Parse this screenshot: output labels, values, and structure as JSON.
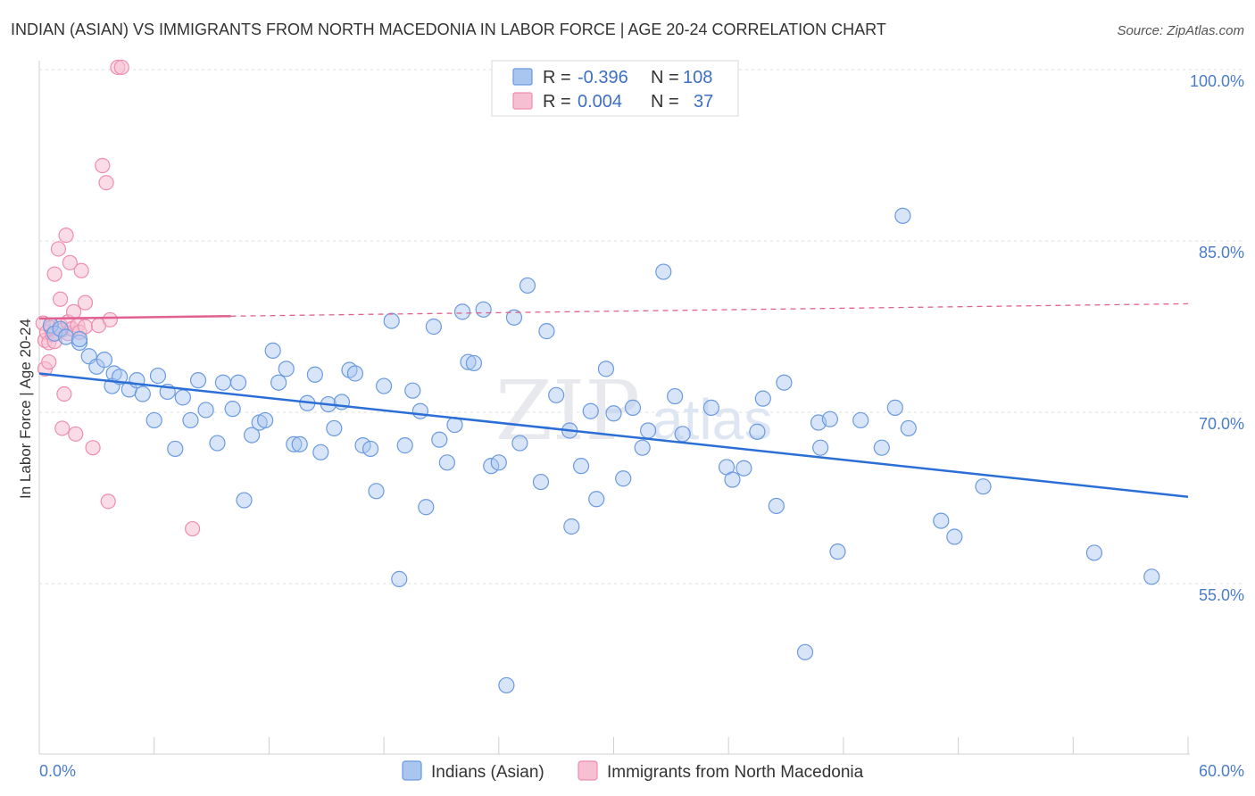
{
  "title": "INDIAN (ASIAN) VS IMMIGRANTS FROM NORTH MACEDONIA IN LABOR FORCE | AGE 20-24 CORRELATION CHART",
  "source": "Source: ZipAtlas.com",
  "watermark": {
    "zip": "ZIP",
    "atlas": "atlas"
  },
  "colors": {
    "blue": "#6a9ae0",
    "blue_fill": "#a9c6ef",
    "blue_line": "#2b6fd6",
    "pink": "#ee8db0",
    "pink_fill": "#f6bfd2",
    "pink_line": "#e0608f",
    "tick_text": "#4a7cc9"
  },
  "legend": {
    "row1": {
      "r_label": "R =",
      "r_value": "-0.396",
      "n_label": "N =",
      "n_value": "108"
    },
    "row2": {
      "r_label": "R =",
      "r_value": "0.004",
      "n_label": "N =",
      "n_value": "37"
    }
  },
  "bottom_legend": {
    "blue_label": "Indians (Asian)",
    "pink_label": "Immigrants from North Macedonia"
  },
  "chart_data": {
    "type": "scatter",
    "title": "INDIAN (ASIAN) VS IMMIGRANTS FROM NORTH MACEDONIA IN LABOR FORCE | AGE 20-24 CORRELATION CHART",
    "xlabel": "",
    "ylabel": "In Labor Force | Age 20-24",
    "xlim": [
      0,
      60
    ],
    "ylim": [
      40,
      102
    ],
    "x_tick_labels": [
      "0.0%",
      "60.0%"
    ],
    "y_ticks": [
      55,
      70,
      85,
      100
    ],
    "y_tick_labels": [
      "55.0%",
      "70.0%",
      "85.0%",
      "100.0%"
    ],
    "grid": "horizontal dashed",
    "legend_position": "top-center",
    "series": [
      {
        "name": "Indians (Asian)",
        "color": "#6a9ae0",
        "r": -0.396,
        "n": 108,
        "trend": {
          "x": [
            0,
            60
          ],
          "y": [
            73.4,
            62.6
          ],
          "style": "solid"
        },
        "points": [
          [
            0.6,
            77.6
          ],
          [
            0.8,
            76.9
          ],
          [
            1.1,
            77.3
          ],
          [
            1.4,
            76.6
          ],
          [
            2.1,
            76.1
          ],
          [
            2.1,
            76.4
          ],
          [
            2.6,
            74.9
          ],
          [
            3.0,
            74.0
          ],
          [
            3.4,
            74.6
          ],
          [
            3.9,
            73.4
          ],
          [
            3.8,
            72.3
          ],
          [
            4.2,
            73.1
          ],
          [
            4.7,
            72.0
          ],
          [
            5.1,
            72.8
          ],
          [
            5.4,
            71.6
          ],
          [
            6.2,
            73.2
          ],
          [
            6.0,
            69.3
          ],
          [
            6.7,
            71.8
          ],
          [
            7.1,
            66.8
          ],
          [
            7.5,
            71.3
          ],
          [
            7.9,
            69.3
          ],
          [
            8.3,
            72.8
          ],
          [
            8.7,
            70.2
          ],
          [
            9.3,
            67.3
          ],
          [
            9.6,
            72.6
          ],
          [
            10.1,
            70.3
          ],
          [
            10.4,
            72.6
          ],
          [
            10.7,
            62.3
          ],
          [
            11.1,
            68.0
          ],
          [
            11.5,
            69.1
          ],
          [
            11.8,
            69.3
          ],
          [
            12.2,
            75.4
          ],
          [
            12.5,
            72.6
          ],
          [
            12.9,
            73.8
          ],
          [
            13.3,
            67.2
          ],
          [
            13.6,
            67.2
          ],
          [
            14.0,
            70.8
          ],
          [
            14.4,
            73.3
          ],
          [
            14.7,
            66.5
          ],
          [
            15.1,
            70.7
          ],
          [
            15.4,
            68.6
          ],
          [
            15.8,
            70.9
          ],
          [
            16.2,
            73.7
          ],
          [
            16.5,
            73.4
          ],
          [
            16.9,
            67.1
          ],
          [
            17.3,
            66.8
          ],
          [
            17.6,
            63.1
          ],
          [
            18.0,
            72.3
          ],
          [
            18.4,
            78.0
          ],
          [
            18.8,
            55.4
          ],
          [
            19.1,
            67.1
          ],
          [
            19.5,
            71.9
          ],
          [
            19.9,
            70.1
          ],
          [
            20.2,
            61.7
          ],
          [
            20.6,
            77.5
          ],
          [
            20.9,
            67.6
          ],
          [
            21.3,
            65.6
          ],
          [
            21.7,
            68.9
          ],
          [
            22.1,
            78.8
          ],
          [
            22.4,
            74.4
          ],
          [
            22.7,
            74.3
          ],
          [
            23.2,
            79.0
          ],
          [
            23.6,
            65.3
          ],
          [
            24.0,
            65.6
          ],
          [
            24.4,
            46.1
          ],
          [
            24.8,
            78.3
          ],
          [
            25.1,
            67.3
          ],
          [
            25.5,
            81.1
          ],
          [
            26.2,
            63.9
          ],
          [
            26.5,
            77.1
          ],
          [
            27.0,
            71.5
          ],
          [
            27.7,
            68.4
          ],
          [
            27.8,
            60.0
          ],
          [
            28.3,
            65.3
          ],
          [
            28.8,
            70.1
          ],
          [
            29.1,
            62.4
          ],
          [
            29.6,
            73.8
          ],
          [
            30.0,
            69.9
          ],
          [
            30.5,
            64.2
          ],
          [
            31.0,
            70.4
          ],
          [
            31.5,
            66.9
          ],
          [
            31.8,
            68.4
          ],
          [
            32.6,
            82.3
          ],
          [
            33.2,
            71.4
          ],
          [
            33.6,
            68.1
          ],
          [
            35.1,
            70.4
          ],
          [
            35.9,
            65.2
          ],
          [
            36.2,
            64.1
          ],
          [
            36.8,
            65.1
          ],
          [
            37.5,
            68.3
          ],
          [
            37.8,
            71.2
          ],
          [
            38.5,
            61.8
          ],
          [
            38.9,
            72.6
          ],
          [
            40.0,
            49.0
          ],
          [
            40.7,
            69.1
          ],
          [
            40.8,
            66.9
          ],
          [
            41.3,
            69.4
          ],
          [
            41.7,
            57.8
          ],
          [
            42.9,
            69.3
          ],
          [
            44.0,
            66.9
          ],
          [
            44.7,
            70.4
          ],
          [
            45.1,
            87.2
          ],
          [
            45.4,
            68.6
          ],
          [
            47.1,
            60.5
          ],
          [
            47.8,
            59.1
          ],
          [
            49.3,
            63.5
          ],
          [
            55.1,
            57.7
          ],
          [
            58.1,
            55.6
          ]
        ]
      },
      {
        "name": "Immigrants from North Macedonia",
        "color": "#ee8db0",
        "r": 0.004,
        "n": 37,
        "trend": {
          "x": [
            0,
            60
          ],
          "y": [
            78.2,
            79.5
          ],
          "solid_until_x": 10
        },
        "points": [
          [
            0.2,
            77.8
          ],
          [
            0.3,
            76.3
          ],
          [
            0.3,
            73.8
          ],
          [
            0.4,
            77.0
          ],
          [
            0.5,
            76.1
          ],
          [
            0.5,
            74.4
          ],
          [
            0.6,
            77.4
          ],
          [
            0.7,
            76.8
          ],
          [
            0.8,
            76.2
          ],
          [
            0.8,
            82.1
          ],
          [
            1.0,
            84.3
          ],
          [
            1.1,
            77.6
          ],
          [
            1.1,
            79.9
          ],
          [
            1.2,
            77.2
          ],
          [
            1.2,
            68.6
          ],
          [
            1.3,
            71.6
          ],
          [
            1.4,
            85.5
          ],
          [
            1.5,
            77.9
          ],
          [
            1.5,
            76.9
          ],
          [
            1.6,
            83.1
          ],
          [
            1.7,
            77.3
          ],
          [
            1.8,
            78.8
          ],
          [
            1.9,
            68.1
          ],
          [
            2.0,
            77.6
          ],
          [
            2.1,
            77.0
          ],
          [
            2.2,
            82.4
          ],
          [
            2.4,
            79.6
          ],
          [
            2.4,
            77.5
          ],
          [
            2.8,
            66.9
          ],
          [
            3.1,
            77.6
          ],
          [
            3.3,
            91.6
          ],
          [
            3.5,
            90.1
          ],
          [
            3.6,
            62.2
          ],
          [
            3.7,
            78.1
          ],
          [
            4.1,
            100.2
          ],
          [
            4.3,
            100.2
          ],
          [
            8.0,
            59.8
          ]
        ]
      }
    ]
  }
}
